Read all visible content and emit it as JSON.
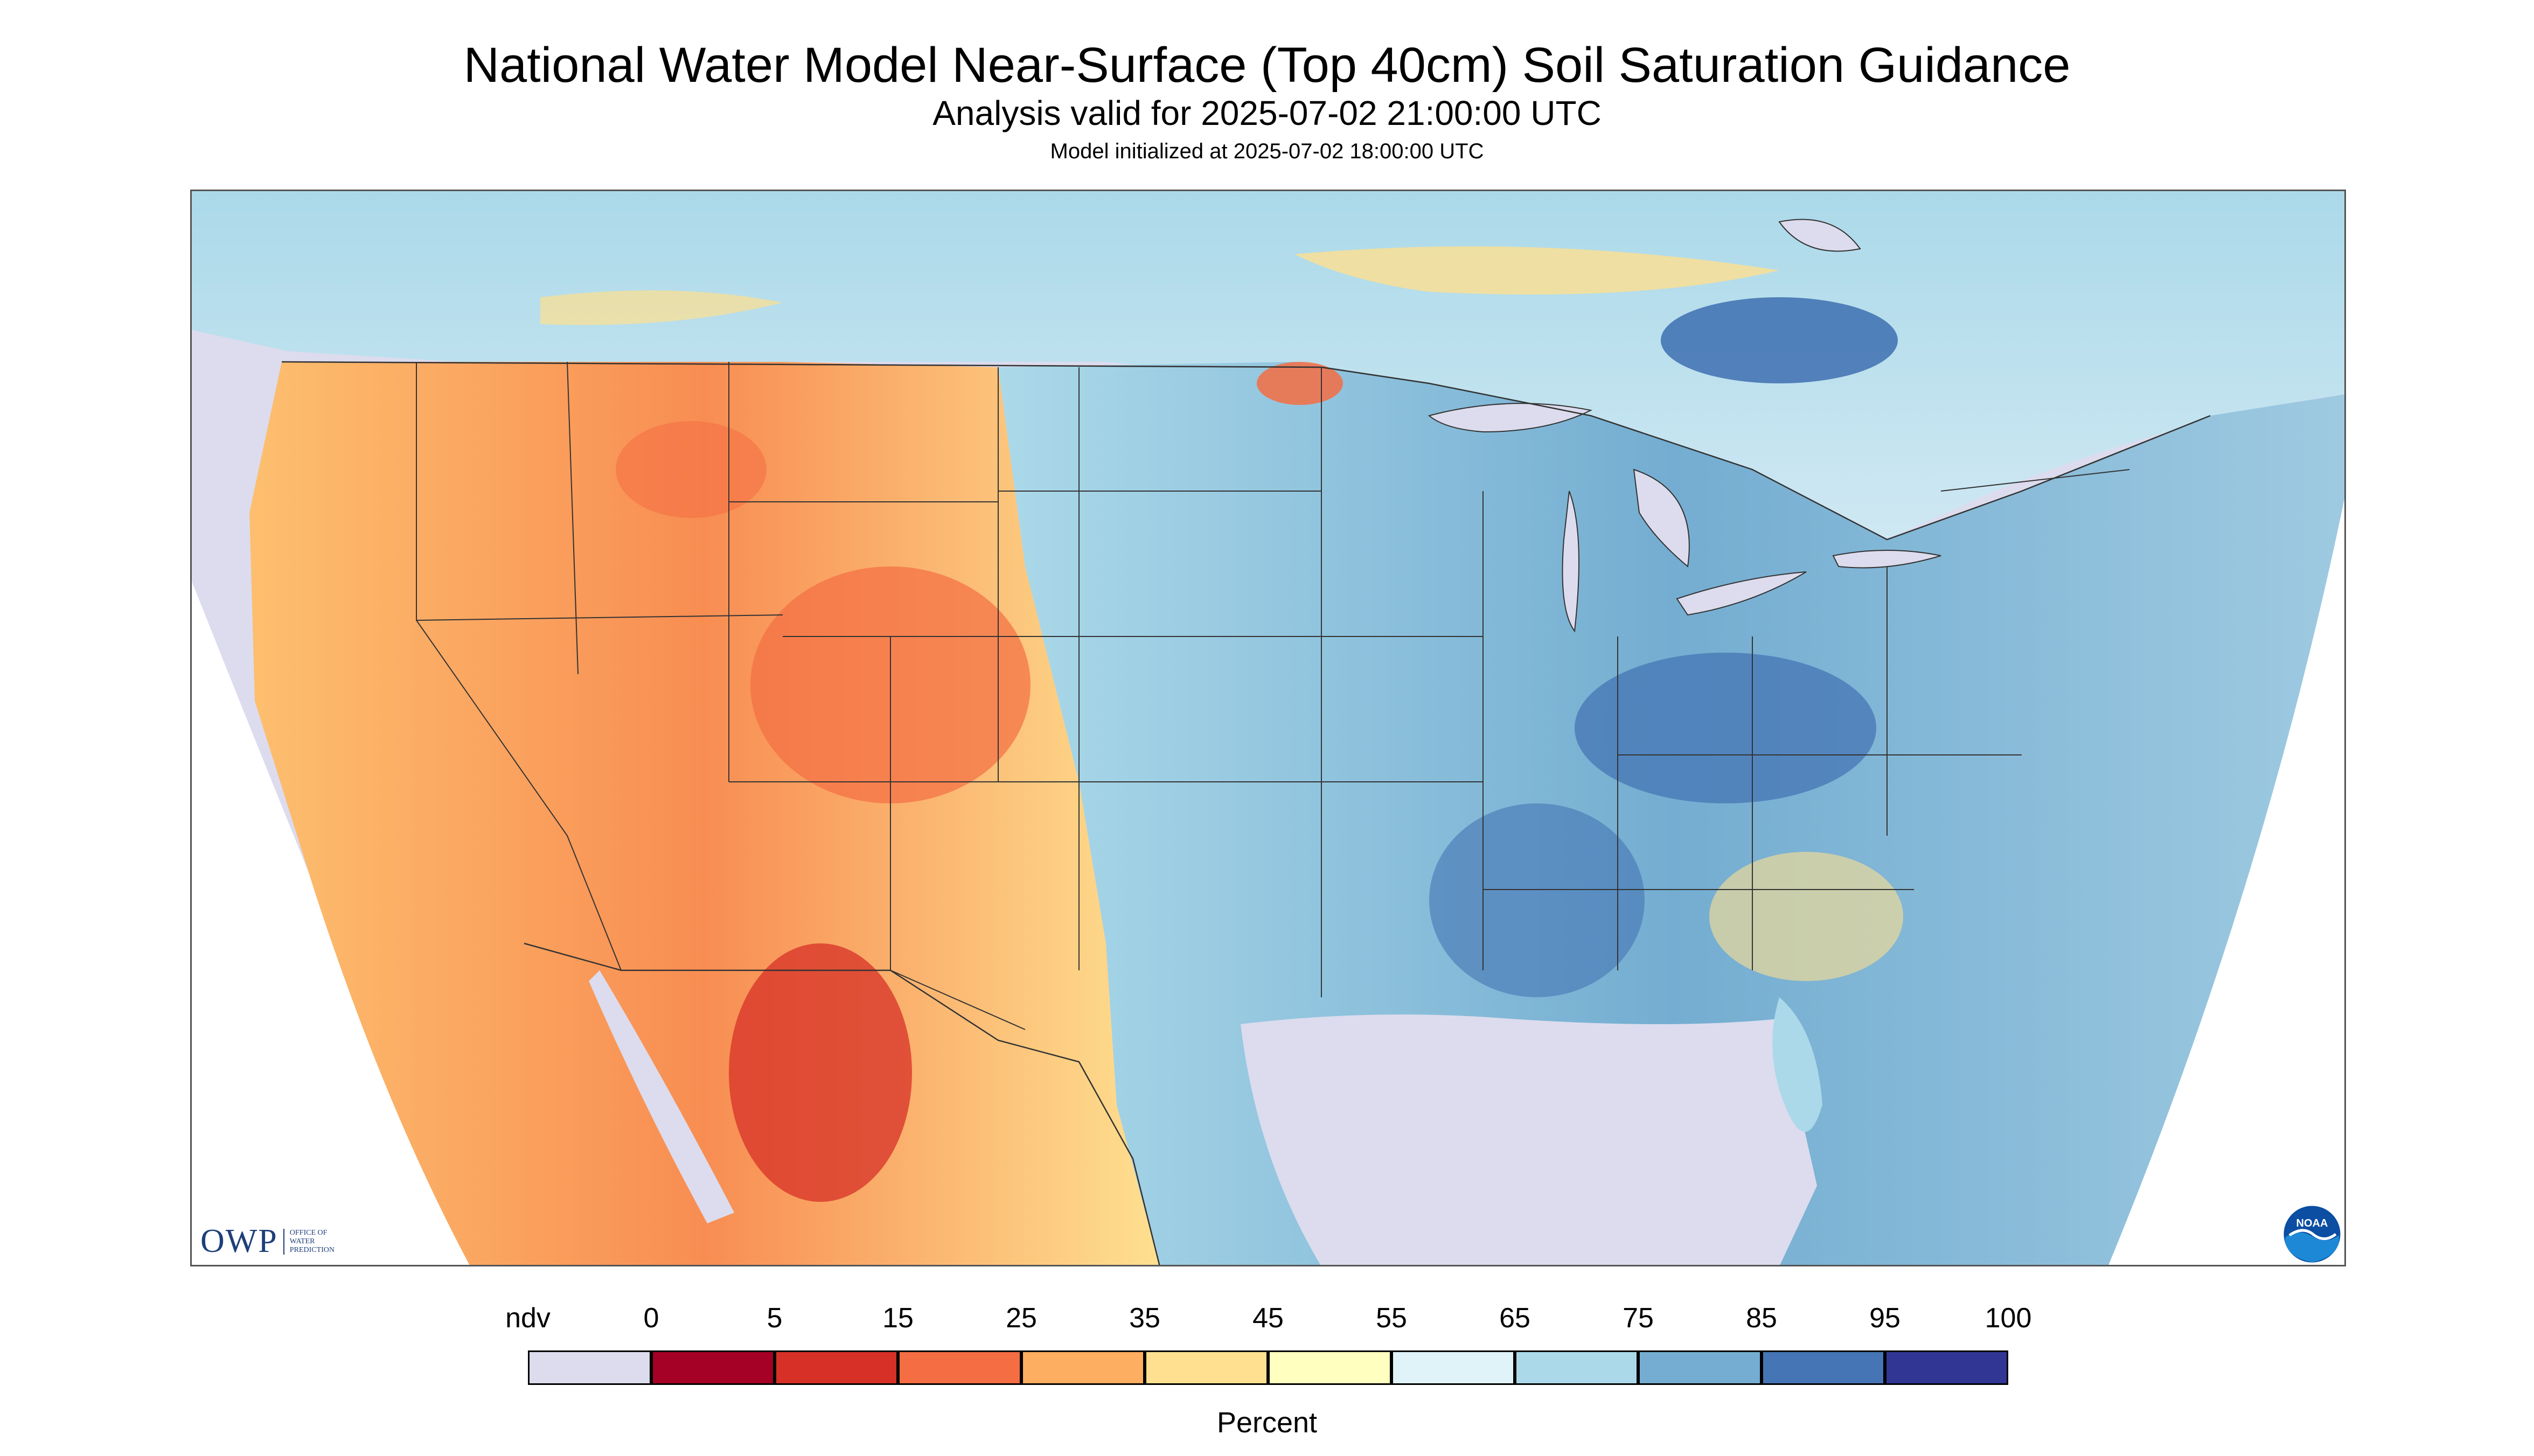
{
  "header": {
    "title": "National Water Model Near-Surface (Top 40cm) Soil Saturation Guidance",
    "subtitle": "Analysis valid for 2025-07-02 21:00:00 UTC",
    "init": "Model initialized at 2025-07-02 18:00:00 UTC"
  },
  "legend": {
    "title": "Percent",
    "ndv_label": "ndv",
    "ndv_color": "#dcdcee",
    "breaks": [
      "0",
      "5",
      "15",
      "25",
      "35",
      "45",
      "55",
      "65",
      "75",
      "85",
      "95",
      "100"
    ],
    "colors": [
      "#a50026",
      "#d73027",
      "#f46d43",
      "#fdae61",
      "#fee090",
      "#ffffbf",
      "#e0f3f8",
      "#abd9e9",
      "#74add1",
      "#4575b4",
      "#313695"
    ]
  },
  "map": {
    "background_ndv_color": "#dcdcee",
    "water_color": "#dcdcee",
    "border_color": "#333333"
  },
  "logos": {
    "owp_text": "OWP",
    "owp_sub": [
      "OFFICE OF",
      "WATER",
      "PREDICTION"
    ],
    "noaa_text": "NOAA"
  }
}
